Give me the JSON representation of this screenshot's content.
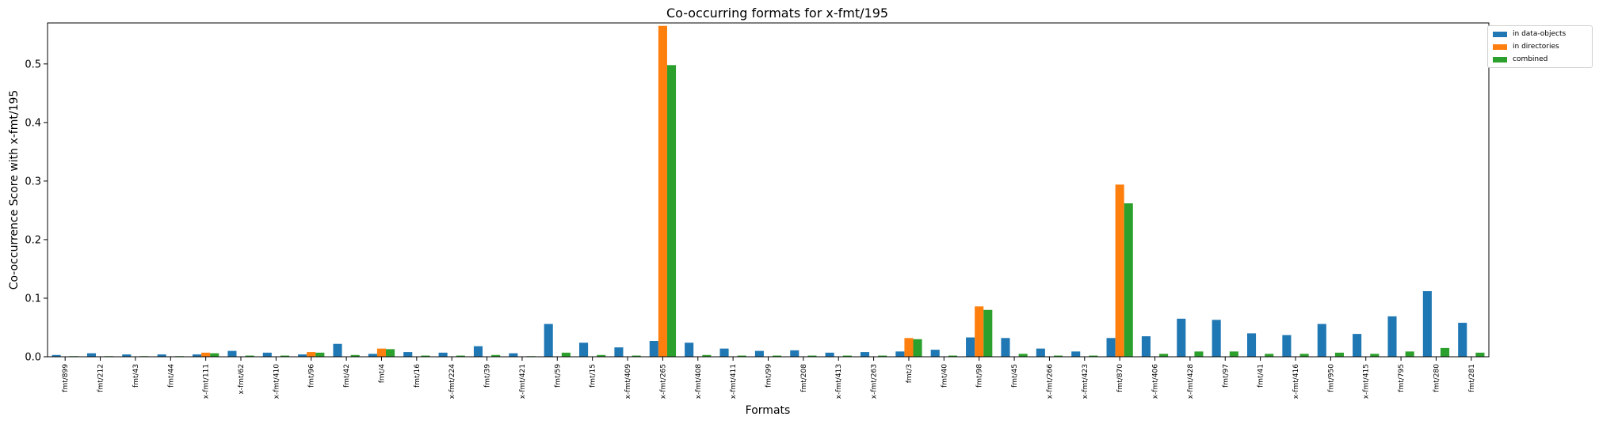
{
  "chart_data": {
    "type": "bar",
    "title": "Co-occurring formats for x-fmt/195",
    "xlabel": "Formats",
    "ylabel": "Co-occurrence Score with x-fmt/195",
    "ylim": [
      0,
      0.57
    ],
    "yticks": [
      "0.0",
      "0.1",
      "0.2",
      "0.3",
      "0.4",
      "0.5"
    ],
    "grid": false,
    "legend_position": "outside-top-right",
    "categories": [
      "fmt/899",
      "fmt/212",
      "fmt/43",
      "fmt/44",
      "x-fmt/111",
      "x-fmt/62",
      "x-fmt/410",
      "fmt/96",
      "fmt/42",
      "fmt/4",
      "fmt/16",
      "x-fmt/224",
      "fmt/39",
      "x-fmt/421",
      "fmt/59",
      "fmt/15",
      "x-fmt/409",
      "x-fmt/265",
      "x-fmt/408",
      "x-fmt/411",
      "fmt/99",
      "fmt/208",
      "x-fmt/413",
      "x-fmt/263",
      "fmt/3",
      "fmt/40",
      "fmt/98",
      "fmt/45",
      "x-fmt/266",
      "x-fmt/423",
      "fmt/870",
      "x-fmt/406",
      "x-fmt/428",
      "fmt/97",
      "fmt/41",
      "x-fmt/416",
      "fmt/950",
      "x-fmt/415",
      "fmt/795",
      "fmt/280",
      "fmt/281"
    ],
    "series": [
      {
        "name": "in data-objects",
        "color": "#1f77b4",
        "values": [
          0.003,
          0.006,
          0.004,
          0.004,
          0.004,
          0.01,
          0.007,
          0.004,
          0.022,
          0.005,
          0.008,
          0.007,
          0.018,
          0.006,
          0.056,
          0.024,
          0.016,
          0.027,
          0.024,
          0.014,
          0.01,
          0.011,
          0.007,
          0.008,
          0.009,
          0.012,
          0.033,
          0.032,
          0.014,
          0.009,
          0.032,
          0.035,
          0.065,
          0.063,
          0.04,
          0.037,
          0.056,
          0.039,
          0.069,
          0.112,
          0.058
        ]
      },
      {
        "name": "in directories",
        "color": "#ff7f0e",
        "values": [
          0,
          0,
          0,
          0,
          0.007,
          0,
          0,
          0.008,
          0,
          0.014,
          0,
          0,
          0,
          0,
          0,
          0,
          0,
          0.565,
          0,
          0,
          0,
          0,
          0,
          0,
          0.032,
          0,
          0.086,
          0,
          0,
          0,
          0.294,
          0,
          0,
          0,
          0,
          0,
          0,
          0,
          0,
          0,
          0
        ]
      },
      {
        "name": "combined",
        "color": "#2ca02c",
        "values": [
          0.001,
          0.001,
          0.001,
          0.001,
          0.006,
          0.002,
          0.002,
          0.007,
          0.003,
          0.013,
          0.002,
          0.002,
          0.003,
          0.001,
          0.007,
          0.003,
          0.002,
          0.498,
          0.003,
          0.002,
          0.002,
          0.002,
          0.002,
          0.002,
          0.03,
          0.002,
          0.08,
          0.005,
          0.002,
          0.002,
          0.262,
          0.005,
          0.009,
          0.009,
          0.005,
          0.005,
          0.007,
          0.005,
          0.009,
          0.015,
          0.007
        ]
      }
    ]
  }
}
